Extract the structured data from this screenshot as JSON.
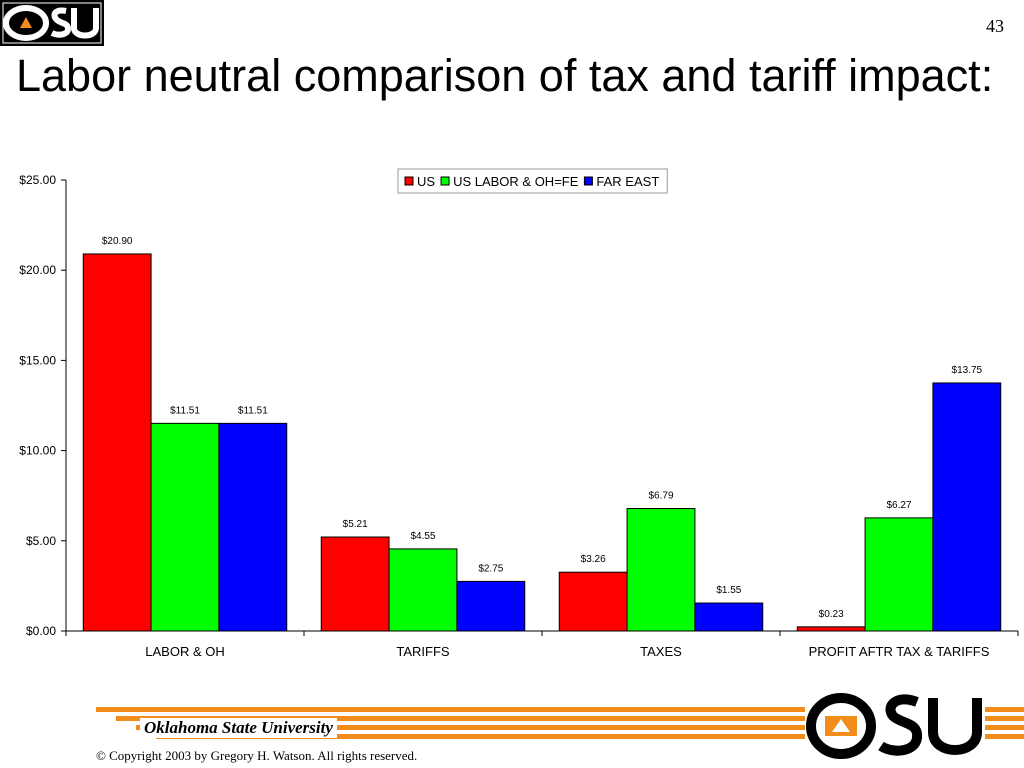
{
  "slide": {
    "number": "43",
    "title": "Labor neutral comparison of tax and tariff impact:"
  },
  "branding": {
    "logo_text": "OSU",
    "university": "Oklahoma State University",
    "copyright": "© Copyright 2003 by Gregory H. Watson. All rights reserved.",
    "accent_color": "#f28c1a"
  },
  "chart_data": {
    "type": "bar",
    "categories": [
      "LABOR & OH",
      "TARIFFS",
      "TAXES",
      "PROFIT AFTR TAX & TARIFFS"
    ],
    "series": [
      {
        "name": "US",
        "color": "#ff0000",
        "values": [
          20.9,
          5.21,
          3.26,
          0.23
        ],
        "labels": [
          "$20.90",
          "$5.21",
          "$3.26",
          "$0.23"
        ]
      },
      {
        "name": "US LABOR & OH=FE",
        "color": "#00ff00",
        "values": [
          11.51,
          4.55,
          6.79,
          6.27
        ],
        "labels": [
          "$11.51",
          "$4.55",
          "$6.79",
          "$6.27"
        ]
      },
      {
        "name": "FAR EAST",
        "color": "#0000ff",
        "values": [
          11.51,
          2.75,
          1.55,
          13.75
        ],
        "labels": [
          "$11.51",
          "$2.75",
          "$1.55",
          "$13.75"
        ]
      }
    ],
    "ylim": [
      0,
      25
    ],
    "yticks": [
      0,
      5,
      10,
      15,
      20,
      25
    ],
    "ytick_labels": [
      "$0.00",
      "$5.00",
      "$10.00",
      "$15.00",
      "$20.00",
      "$25.00"
    ],
    "xlabel": "",
    "ylabel": "",
    "grid": false,
    "legend_position": "top-center"
  }
}
